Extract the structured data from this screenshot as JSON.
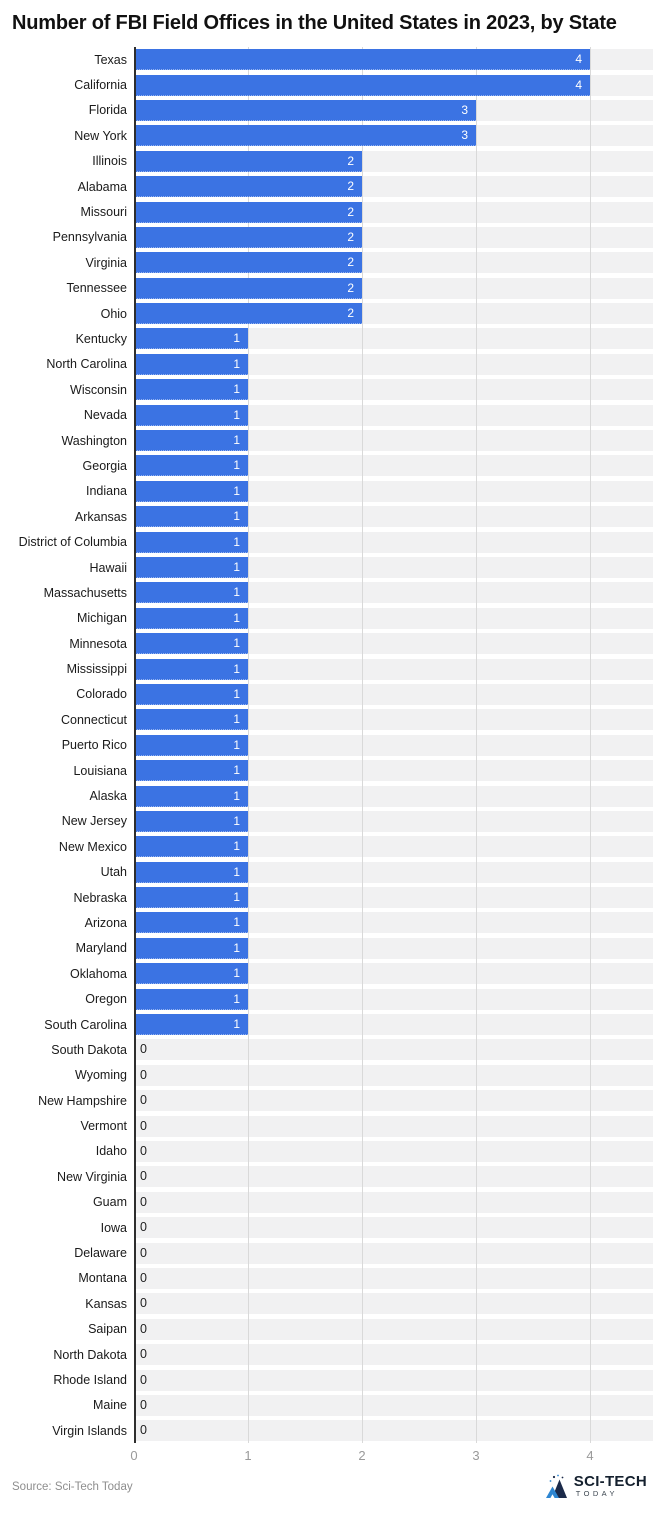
{
  "title": "Number of FBI Field Offices in the United States in 2023, by State",
  "chart_data": {
    "type": "bar",
    "orientation": "horizontal",
    "title": "Number of FBI Field Offices in the United States in 2023, by State",
    "xlabel": "",
    "ylabel": "",
    "categories": [
      "Texas",
      "California",
      "Florida",
      "New York",
      "Illinois",
      "Alabama",
      "Missouri",
      "Pennsylvania",
      "Virginia",
      "Tennessee",
      "Ohio",
      "Kentucky",
      "North Carolina",
      "Wisconsin",
      "Nevada",
      "Washington",
      "Georgia",
      "Indiana",
      "Arkansas",
      "District of Columbia",
      "Hawaii",
      "Massachusetts",
      "Michigan",
      "Minnesota",
      "Mississippi",
      "Colorado",
      "Connecticut",
      "Puerto Rico",
      "Louisiana",
      "Alaska",
      "New Jersey",
      "New Mexico",
      "Utah",
      "Nebraska",
      "Arizona",
      "Maryland",
      "Oklahoma",
      "Oregon",
      "South Carolina",
      "South Dakota",
      "Wyoming",
      "New Hampshire",
      "Vermont",
      "Idaho",
      "New Virginia",
      "Guam",
      "Iowa",
      "Delaware",
      "Montana",
      "Kansas",
      "Saipan",
      "North Dakota",
      "Rhode Island",
      "Maine",
      "Virgin Islands"
    ],
    "values": [
      4,
      4,
      3,
      3,
      2,
      2,
      2,
      2,
      2,
      2,
      2,
      1,
      1,
      1,
      1,
      1,
      1,
      1,
      1,
      1,
      1,
      1,
      1,
      1,
      1,
      1,
      1,
      1,
      1,
      1,
      1,
      1,
      1,
      1,
      1,
      1,
      1,
      1,
      1,
      0,
      0,
      0,
      0,
      0,
      0,
      0,
      0,
      0,
      0,
      0,
      0,
      0,
      0,
      0,
      0
    ],
    "xticks": [
      0,
      1,
      2,
      3,
      4
    ],
    "xlim": [
      0,
      4.55
    ],
    "grid": "vertical",
    "legend": "none",
    "value_labels": "inside-end"
  },
  "footer": {
    "source": "Source: Sci-Tech Today",
    "logo": {
      "line1": "SCI-TECH",
      "line2": "TODAY"
    }
  },
  "colors": {
    "bar": "#3b73e3",
    "track": "#f1f1f2",
    "grid": "#d9d9d9",
    "axis": "#2e2e2e",
    "value_label": "#ffffff",
    "zero_label": "#222222",
    "tick_label": "#9a9a9a",
    "title": "#111111",
    "source": "#8e8e8e"
  }
}
